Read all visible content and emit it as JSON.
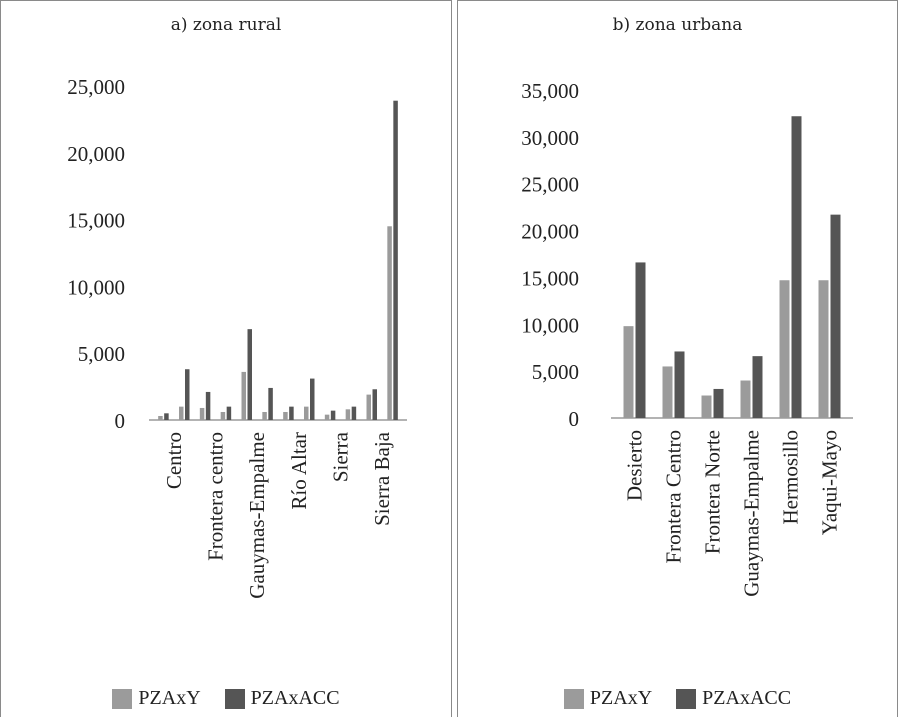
{
  "colors": {
    "series1": "#9b9b9b",
    "series2": "#555555",
    "border": "#8a8a8a"
  },
  "chart_data": [
    {
      "type": "bar",
      "title": "a) zona rural",
      "ylim": [
        0,
        25000
      ],
      "yticks": [
        "0",
        "5,000",
        "10,000",
        "15,000",
        "20,000",
        "25,000"
      ],
      "tick_categories": [
        "Centro",
        "Frontera centro",
        "Gauymas-Empalme",
        "Río Altar",
        "Sierra",
        "Sierra Baja"
      ],
      "legend": "bottom",
      "series": [
        {
          "name": "PZAxY",
          "values": [
            300,
            1000,
            900,
            600,
            3600,
            600,
            600,
            1000,
            400,
            800,
            1900,
            14500
          ]
        },
        {
          "name": "PZAxACC",
          "values": [
            500,
            3800,
            2100,
            1000,
            6800,
            2400,
            1000,
            3100,
            700,
            1000,
            2300,
            23900
          ]
        }
      ]
    },
    {
      "type": "bar",
      "title": "b) zona urbana",
      "ylim": [
        0,
        35000
      ],
      "yticks": [
        "0",
        "5,000",
        "10,000",
        "15,000",
        "20,000",
        "25,000",
        "30,000",
        "35,000"
      ],
      "categories": [
        "Desierto",
        "Frontera Centro",
        "Frontera Norte",
        "Guaymas-Empalme",
        "Hermosillo",
        "Yaqui-Mayo"
      ],
      "legend": "bottom",
      "series": [
        {
          "name": "PZAxY",
          "values": [
            9800,
            5500,
            2400,
            4000,
            14700,
            14700
          ]
        },
        {
          "name": "PZAxACC",
          "values": [
            16600,
            7100,
            3100,
            6600,
            32200,
            21700
          ]
        }
      ]
    }
  ]
}
